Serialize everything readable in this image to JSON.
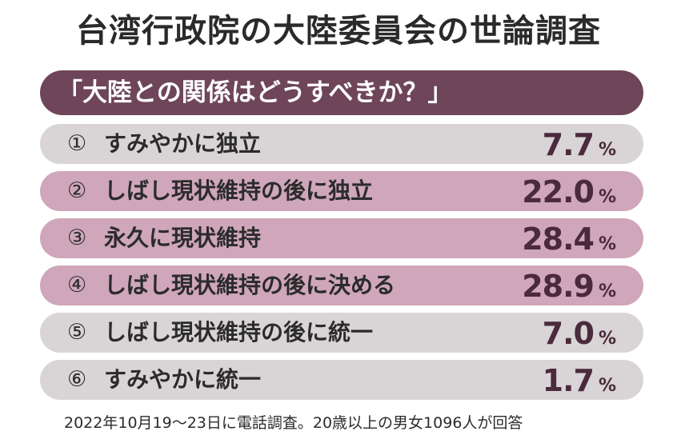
{
  "title": "台湾行政院の大陸委員会の世論調査",
  "subtitle": "「大陸との関係はどうすべきか？」",
  "colors": {
    "header_bar": "#6e4559",
    "row_low": "#d9d4d6",
    "row_high": "#cfa6ba",
    "value_text": "#4a2a3b"
  },
  "chart_data": {
    "type": "bar",
    "title": "台湾行政院の大陸委員会の世論調査",
    "subtitle": "「大陸との関係はどうすべきか？」",
    "unit": "%",
    "categories": [
      "すみやかに独立",
      "しばし現状維持の後に独立",
      "永久に現状維持",
      "しばし現状維持の後に決める",
      "しばし現状維持の後に統一",
      "すみやかに統一"
    ],
    "numbers": [
      "①",
      "②",
      "③",
      "④",
      "⑤",
      "⑥"
    ],
    "values": [
      7.7,
      22.0,
      28.4,
      28.9,
      7.0,
      1.7
    ],
    "value_labels": [
      "7.7",
      "22.0",
      "28.4",
      "28.9",
      "7.0",
      "1.7"
    ]
  },
  "footnote": "2022年10月19～23日に電話調査。20歳以上の男女1096人が回答"
}
